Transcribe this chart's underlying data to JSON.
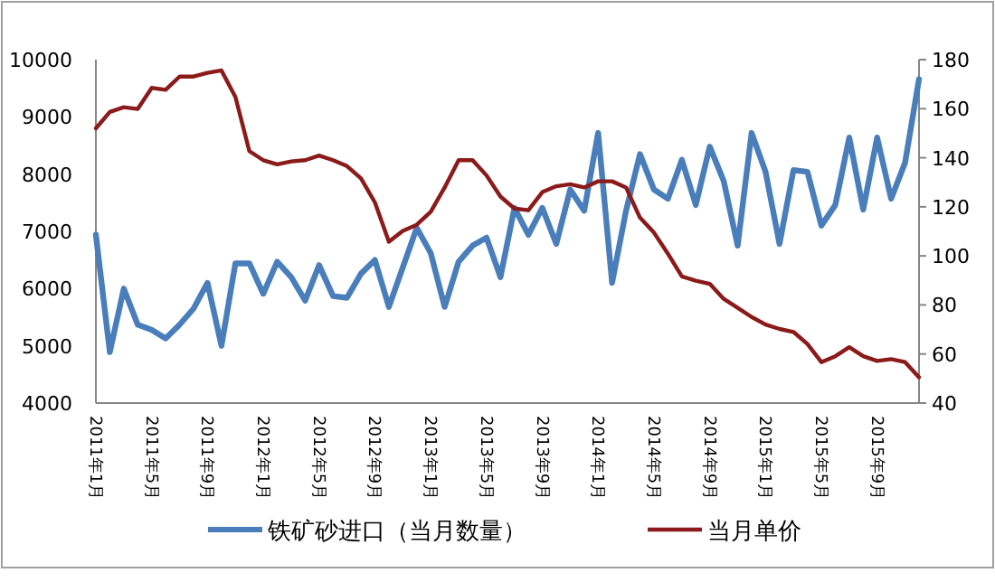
{
  "chart_data": {
    "type": "line",
    "categories": [
      "2011年1月",
      null,
      null,
      null,
      "2011年5月",
      null,
      null,
      null,
      "2011年9月",
      null,
      null,
      null,
      "2012年1月",
      null,
      null,
      null,
      "2012年5月",
      null,
      null,
      null,
      "2012年9月",
      null,
      null,
      null,
      "2013年1月",
      null,
      null,
      null,
      "2013年5月",
      null,
      null,
      null,
      "2013年9月",
      null,
      null,
      null,
      "2014年1月",
      null,
      null,
      null,
      "2014年5月",
      null,
      null,
      null,
      "2014年9月",
      null,
      null,
      null,
      "2015年1月",
      null,
      null,
      null,
      "2015年5月",
      null,
      null,
      null,
      "2015年9月",
      null,
      null,
      null
    ],
    "series": [
      {
        "name": "铁矿砂进口（当月数量）",
        "color": "#4a7ebb",
        "values": [
          6940,
          4890,
          6000,
          5370,
          5280,
          5130,
          5370,
          5650,
          6100,
          5000,
          6440,
          6440,
          5910,
          6470,
          6200,
          5790,
          6410,
          5870,
          5840,
          6260,
          6500,
          5680,
          6370,
          7060,
          6620,
          5680,
          6470,
          6750,
          6890,
          6200,
          7410,
          6940,
          7410,
          6780,
          7730,
          7360,
          8720,
          6100,
          7360,
          8350,
          7730,
          7570,
          8250,
          7460,
          8480,
          7880,
          6750,
          8720,
          8040,
          6780,
          8070,
          8040,
          7100,
          7460,
          8640,
          7380,
          8640,
          7570,
          8200,
          9660
        ]
      },
      {
        "name": "当月单价",
        "color": "#8b1a1a",
        "axis": "y2",
        "values": [
          152,
          158.7,
          160.6,
          159.9,
          168.5,
          167.7,
          173.1,
          173.1,
          174.6,
          175.6,
          164.8,
          142.7,
          139,
          137.3,
          138.5,
          139,
          140.9,
          139,
          136.6,
          131.6,
          121.8,
          105.8,
          110.2,
          112.7,
          118,
          127.9,
          139,
          139,
          132.8,
          124.2,
          119.3,
          118.6,
          126,
          128.4,
          129.2,
          127.9,
          130.4,
          130.4,
          127.9,
          115.6,
          109.5,
          100.9,
          91.6,
          89.9,
          88.6,
          82.5,
          78.8,
          75.1,
          72,
          70.2,
          69,
          64.1,
          56.7,
          59.1,
          62.8,
          59.1,
          57.2,
          57.9,
          56.7,
          50.5
        ]
      }
    ],
    "ylim": [
      4000,
      10000
    ],
    "yticks": [
      4000,
      5000,
      6000,
      7000,
      8000,
      9000,
      10000
    ],
    "y2lim": [
      40,
      180
    ],
    "y2ticks": [
      40,
      60,
      80,
      100,
      120,
      140,
      160,
      180
    ],
    "legend": "bottom",
    "grid": false
  }
}
